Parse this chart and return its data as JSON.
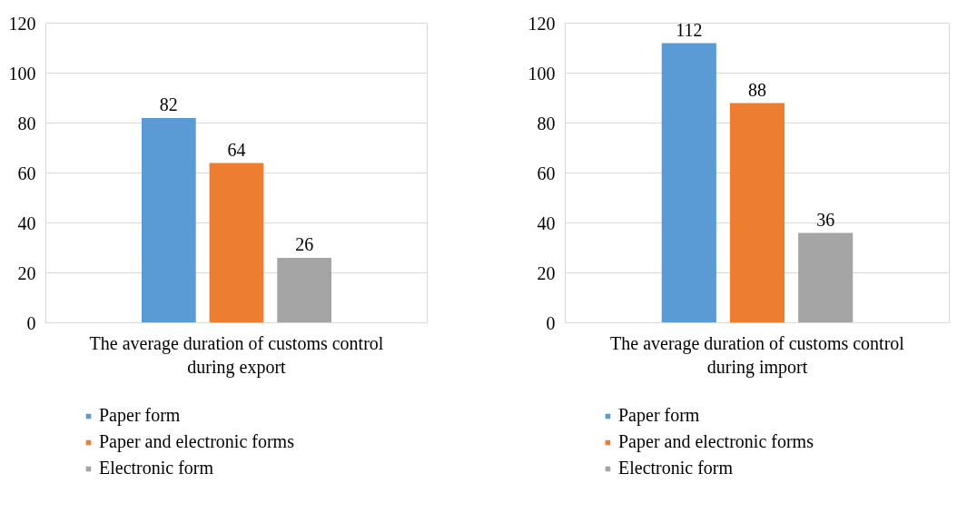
{
  "chart_data": [
    {
      "type": "bar",
      "categories": [
        "The average duration of customs control during export"
      ],
      "series": [
        {
          "name": "Paper form",
          "color": "#5b9bd5",
          "values": [
            82
          ]
        },
        {
          "name": "Paper and electronic forms",
          "color": "#ed7d31",
          "values": [
            64
          ]
        },
        {
          "name": "Electronic form",
          "color": "#a5a5a5",
          "values": [
            26
          ]
        }
      ],
      "ylim": [
        0,
        120
      ],
      "yticks": [
        0,
        20,
        40,
        60,
        80,
        100,
        120
      ],
      "grid": "y",
      "legend": "bottom",
      "data_labels": true
    },
    {
      "type": "bar",
      "categories": [
        "The average duration of customs control during import"
      ],
      "series": [
        {
          "name": "Paper form",
          "color": "#5b9bd5",
          "values": [
            112
          ]
        },
        {
          "name": "Paper and electronic forms",
          "color": "#ed7d31",
          "values": [
            88
          ]
        },
        {
          "name": "Electronic form",
          "color": "#a5a5a5",
          "values": [
            36
          ]
        }
      ],
      "ylim": [
        0,
        120
      ],
      "yticks": [
        0,
        20,
        40,
        60,
        80,
        100,
        120
      ],
      "grid": "y",
      "legend": "bottom",
      "data_labels": true
    }
  ]
}
